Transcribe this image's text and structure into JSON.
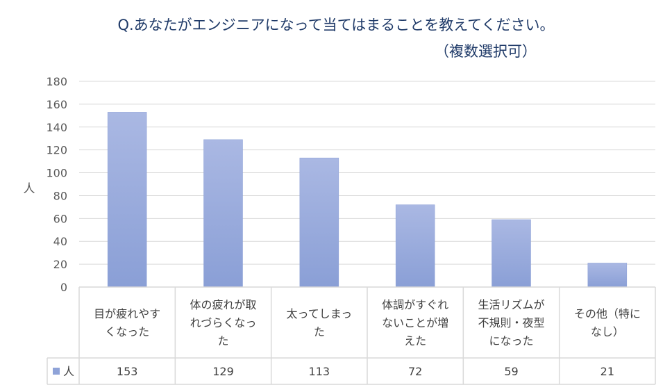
{
  "chart_data": {
    "type": "bar",
    "title": "Q.あなたがエンジニアになって当てはまることを教えてください。",
    "subtitle": "（複数選択可）",
    "ylabel": "人",
    "ylim": [
      0,
      180
    ],
    "yticks": [
      0,
      20,
      40,
      60,
      80,
      100,
      120,
      140,
      160,
      180
    ],
    "categories": [
      [
        "目が疲れやす",
        "くなった"
      ],
      [
        "体の疲れが取",
        "れづらくなっ",
        "た"
      ],
      [
        "太ってしまっ",
        "た"
      ],
      [
        "体調がすぐれ",
        "ないことが増",
        "えた"
      ],
      [
        "生活リズムが",
        "不規則・夜型",
        "になった"
      ],
      [
        "その他（特に",
        "なし）"
      ]
    ],
    "series": [
      {
        "name": "人",
        "values": [
          153,
          129,
          113,
          72,
          59,
          21
        ],
        "color": "#8fa3d8"
      }
    ],
    "grid": true,
    "legend": "table-bottom"
  }
}
